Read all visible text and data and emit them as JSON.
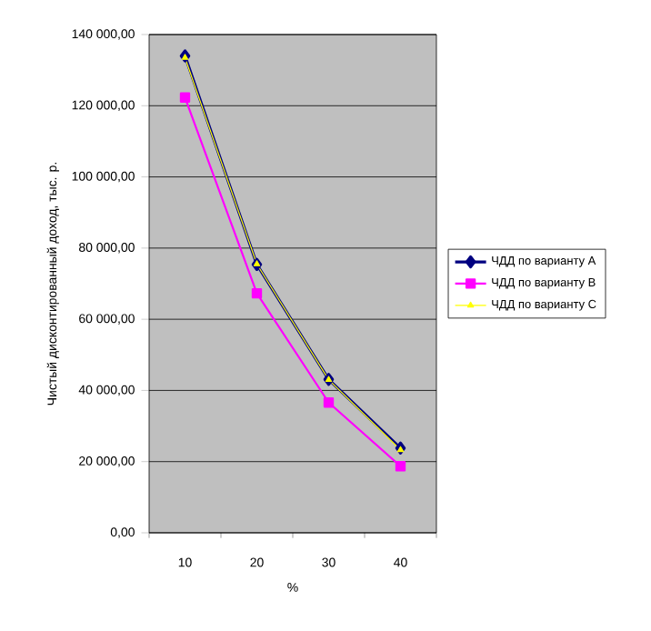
{
  "chart_data": {
    "type": "line",
    "xlabel": "%",
    "ylabel": "Чистый дисконтированный доход, тыс. р.",
    "categories": [
      "10",
      "20",
      "30",
      "40"
    ],
    "series": [
      {
        "name": "ЧДД по варианту А",
        "color": "#000080",
        "marker": "diamond",
        "values": [
          134000,
          75400,
          43100,
          23800
        ]
      },
      {
        "name": "ЧДД по варианту В",
        "color": "#ff00ff",
        "marker": "square",
        "values": [
          122300,
          67300,
          36600,
          18700
        ]
      },
      {
        "name": "ЧДД по варианту С",
        "color": "#ffff00",
        "marker": "triangle",
        "values": [
          133500,
          75500,
          43000,
          23300
        ]
      }
    ],
    "ylim": [
      0,
      140000
    ],
    "yticks": [
      {
        "value": 0,
        "label": "0,00"
      },
      {
        "value": 20000,
        "label": "20 000,00"
      },
      {
        "value": 40000,
        "label": "40 000,00"
      },
      {
        "value": 60000,
        "label": "60 000,00"
      },
      {
        "value": 80000,
        "label": "80 000,00"
      },
      {
        "value": 100000,
        "label": "100 000,00"
      },
      {
        "value": 120000,
        "label": "120 000,00"
      },
      {
        "value": 140000,
        "label": "140 000,00"
      }
    ],
    "grid": "y",
    "legend": "right"
  }
}
